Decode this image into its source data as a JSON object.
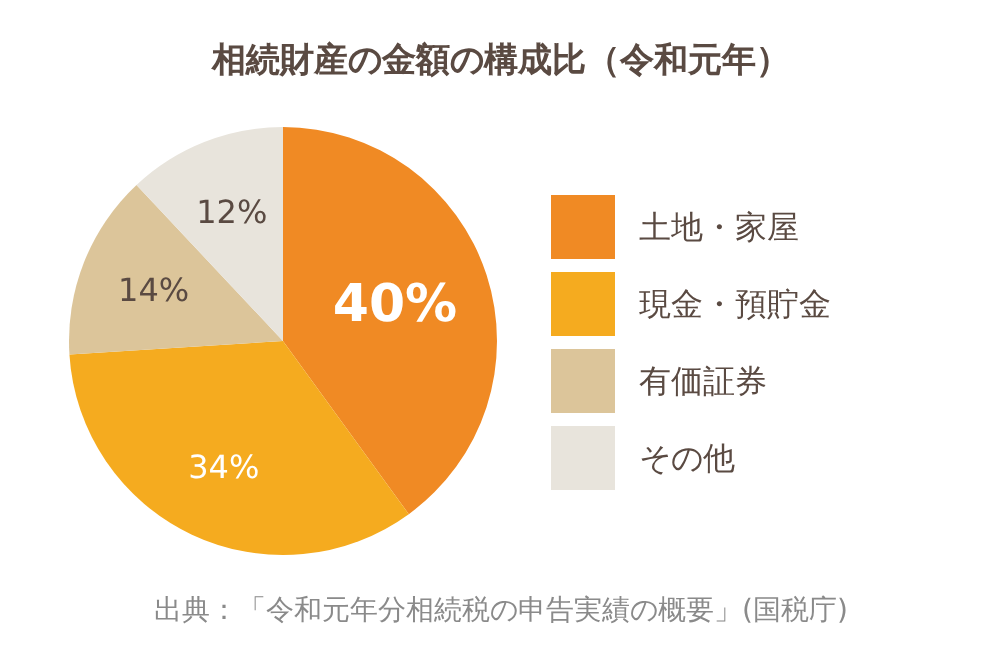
{
  "chart_data": {
    "type": "pie",
    "title": "相続財産の金額の構成比（令和元年）",
    "categories": [
      "土地・家屋",
      "現金・預貯金",
      "有価証券",
      "その他"
    ],
    "values": [
      40,
      34,
      14,
      12
    ],
    "colors": [
      "#f08a24",
      "#f5ab1f",
      "#dcc59a",
      "#e8e4dc"
    ],
    "value_labels": [
      "40%",
      "34%",
      "14%",
      "12%"
    ],
    "legend": "right",
    "annotations": [
      "出典：「令和元年分相続税の申告実績の概要」(国税庁)"
    ]
  }
}
